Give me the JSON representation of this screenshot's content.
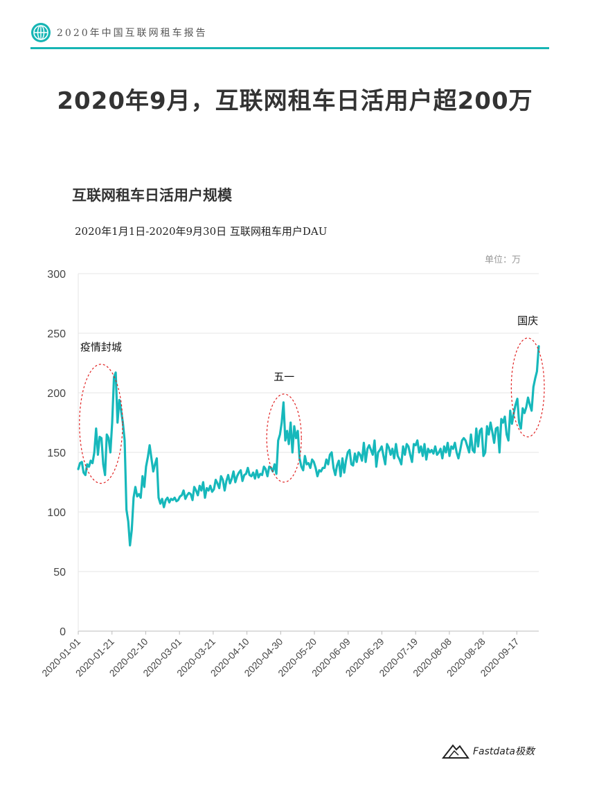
{
  "header": {
    "report_title": "2020年中国互联网租车报告",
    "accent_color": "#16b5b4",
    "icon": "globe-icon"
  },
  "page_title": "2020年9月，互联网租车日活用户超200万",
  "chart_title": "互联网租车日活用户规模",
  "chart_subtitle": "2020年1月1日-2020年9月30日 互联网租车用户DAU",
  "unit_label": "单位：万",
  "footer": {
    "brand": "Fastdata极数",
    "icon": "mountain-logo-icon"
  },
  "chart_data": {
    "type": "line",
    "x_start": "2020-01-01",
    "x_end": "2020-09-30",
    "x_tick_labels": [
      "2020-01-01",
      "2020-01-21",
      "2020-02-10",
      "2020-03-01",
      "2020-03-21",
      "2020-04-10",
      "2020-04-30",
      "2020-05-20",
      "2020-06-09",
      "2020-06-29",
      "2020-07-19",
      "2020-08-08",
      "2020-08-28",
      "2020-09-17"
    ],
    "ylim": [
      0,
      300
    ],
    "y_ticks": [
      0,
      50,
      100,
      150,
      200,
      250,
      300
    ],
    "grid": "horizontal",
    "line_color": "#17b8bb",
    "highlight_color": "#e02020",
    "annotations": [
      {
        "label": "疫情封城",
        "from": "2020-01-05",
        "to": "2020-01-24"
      },
      {
        "label": "五一",
        "from": "2020-04-25",
        "to": "2020-05-09"
      },
      {
        "label": "国庆",
        "from": "2020-09-17",
        "to": "2020-09-30"
      }
    ],
    "series": [
      {
        "values": [
          136,
          141,
          142,
          133,
          131,
          140,
          138,
          143,
          141,
          150,
          170,
          148,
          163,
          162,
          140,
          131,
          165,
          162,
          150,
          175,
          213,
          217,
          175,
          194,
          185,
          175,
          160,
          102,
          92,
          72,
          85,
          112,
          121,
          113,
          115,
          112,
          130,
          121,
          138,
          146,
          156,
          145,
          134,
          140,
          145,
          112,
          107,
          111,
          104,
          110,
          112,
          108,
          111,
          110,
          112,
          109,
          110,
          113,
          114,
          118,
          111,
          114,
          116,
          115,
          110,
          121,
          118,
          114,
          122,
          118,
          125,
          112,
          120,
          118,
          122,
          117,
          119,
          127,
          124,
          120,
          130,
          127,
          118,
          126,
          131,
          124,
          128,
          134,
          125,
          130,
          133,
          135,
          126,
          131,
          132,
          137,
          131,
          130,
          133,
          128,
          135,
          129,
          132,
          131,
          138,
          136,
          130,
          138,
          137,
          134,
          140,
          132,
          160,
          165,
          175,
          192,
          160,
          168,
          157,
          175,
          150,
          172,
          162,
          168,
          145,
          138,
          135,
          147,
          140,
          141,
          137,
          144,
          142,
          137,
          130,
          135,
          134,
          137,
          137,
          144,
          140,
          148,
          150,
          137,
          131,
          139,
          143,
          130,
          145,
          133,
          143,
          150,
          152,
          140,
          139,
          149,
          142,
          150,
          148,
          143,
          158,
          142,
          153,
          156,
          152,
          148,
          160,
          138,
          150,
          152,
          155,
          147,
          140,
          157,
          154,
          148,
          153,
          145,
          157,
          147,
          144,
          140,
          155,
          148,
          157,
          155,
          148,
          142,
          157,
          156,
          160,
          150,
          155,
          147,
          157,
          144,
          153,
          150,
          152,
          149,
          155,
          148,
          150,
          153,
          145,
          155,
          150,
          158,
          147,
          155,
          153,
          158,
          150,
          145,
          152,
          160,
          162,
          160,
          155,
          150,
          165,
          152,
          150,
          170,
          155,
          168,
          170,
          147,
          150,
          172,
          165,
          175,
          167,
          158,
          170,
          171,
          150,
          178,
          175,
          180,
          165,
          160,
          185,
          174,
          183,
          190,
          195,
          175,
          170,
          187,
          183,
          188,
          196,
          190,
          185,
          205,
          212,
          218,
          239
        ]
      }
    ]
  }
}
